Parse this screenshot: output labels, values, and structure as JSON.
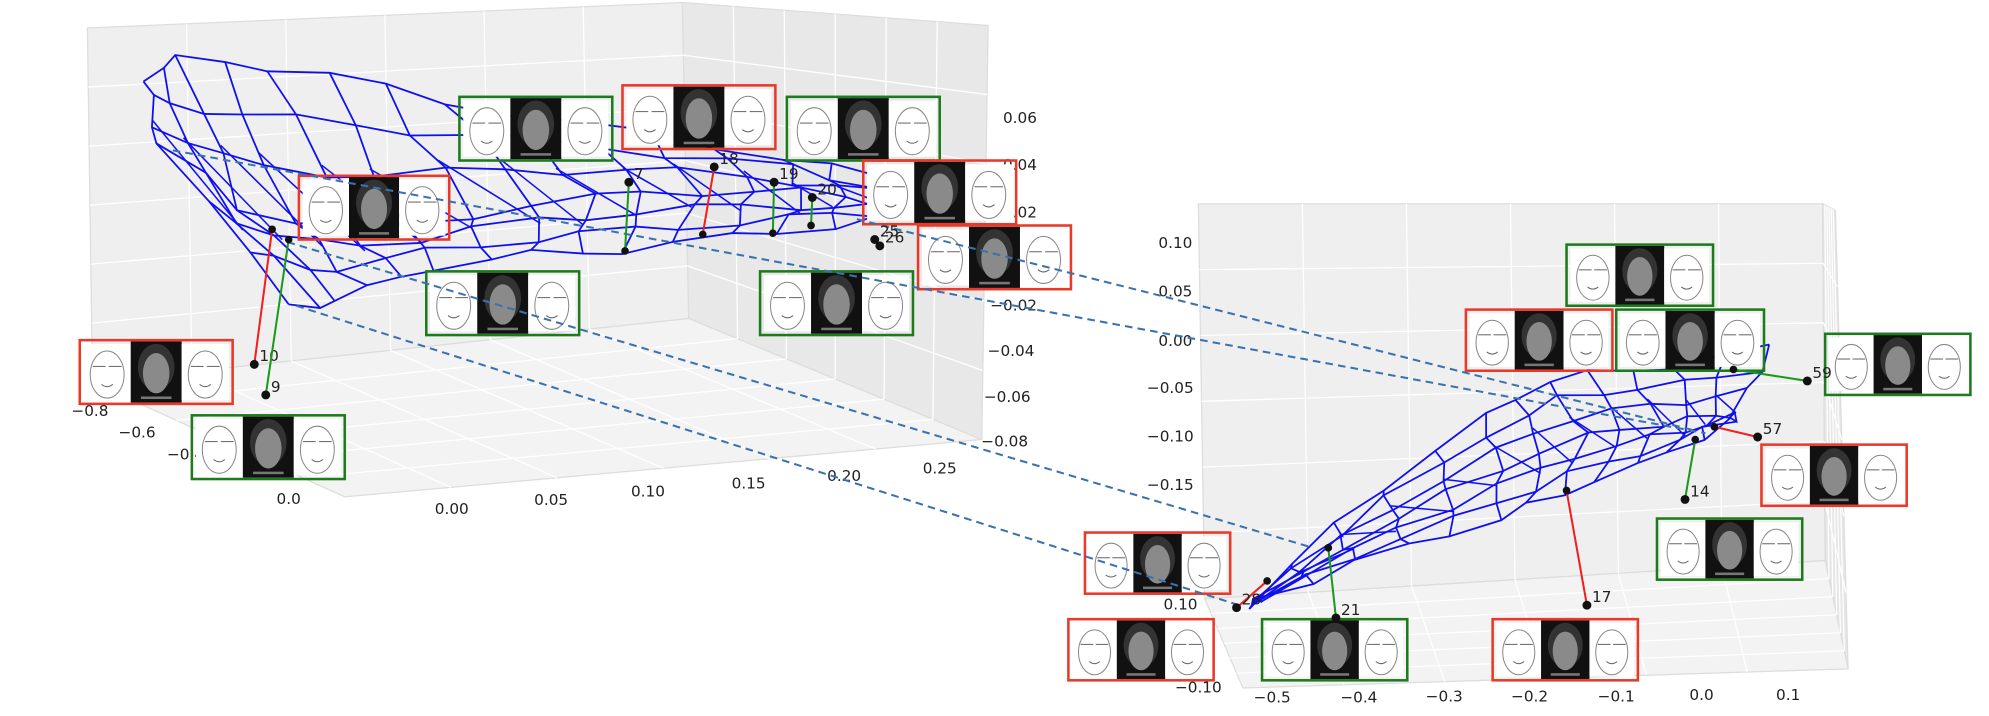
{
  "plots": [
    {
      "x_ticks": [
        "0.00",
        "0.05",
        "0.10",
        "0.15",
        "0.20",
        "0.25"
      ],
      "y_ticks": [
        "−0.8",
        "−0.6",
        "−0.4",
        "0.0"
      ],
      "z_ticks": [
        "0.06",
        "0.04",
        "0.02",
        "−0.02",
        "−0.04",
        "−0.06",
        "−0.08"
      ],
      "points": [
        "7",
        "18",
        "19",
        "20",
        "25",
        "26",
        "10",
        "9"
      ]
    },
    {
      "x_ticks": [
        "−0.5",
        "−0.4",
        "−0.3",
        "−0.2",
        "−0.1",
        "0.0",
        "0.1"
      ],
      "y_ticks": [
        "0.10",
        "0.05",
        "0.00",
        "−0.05",
        "−0.10",
        "−0.15"
      ],
      "z_ticks": [
        "0.10",
        "−0.10"
      ],
      "points": [
        "59",
        "57",
        "14",
        "17",
        "21",
        "28"
      ]
    }
  ]
}
